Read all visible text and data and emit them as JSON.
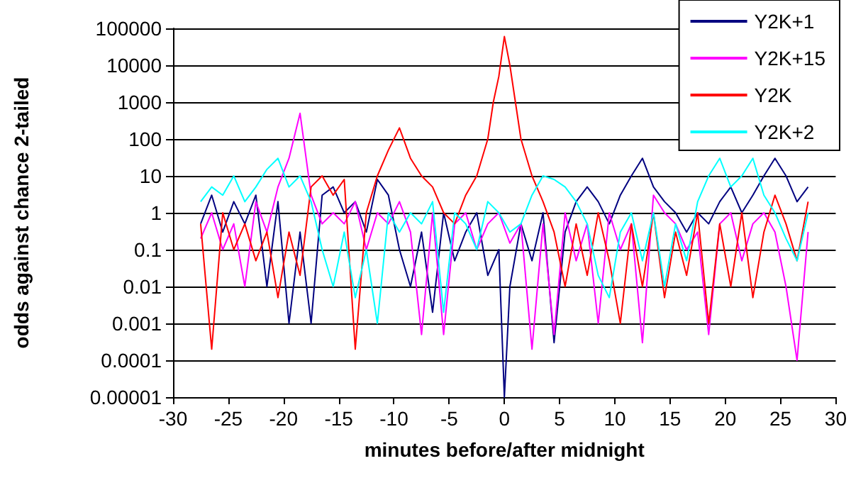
{
  "chart_data": {
    "type": "line",
    "xlabel": "minutes before/after midnight",
    "ylabel": "odds against chance 2-tailed",
    "xlim": [
      -30,
      30
    ],
    "xticks": [
      -30,
      -25,
      -20,
      -15,
      -10,
      -5,
      0,
      5,
      10,
      15,
      20,
      25,
      30
    ],
    "ylim": [
      1e-05,
      100000
    ],
    "yticks": [
      {
        "value": 1e-05,
        "label": "0.00001"
      },
      0.0001,
      0.001,
      0.01,
      0.1,
      1,
      10,
      100,
      1000,
      10000,
      100000
    ],
    "log": "y",
    "grid": "y",
    "legend": "top right",
    "marker": "none",
    "line_style": "solid",
    "x": [
      -27.5,
      -26.5,
      -25.5,
      -24.5,
      -23.5,
      -22.5,
      -21.5,
      -20.5,
      -19.5,
      -18.5,
      -17.5,
      -16.5,
      -15.5,
      -14.5,
      -13.5,
      -12.5,
      -11.5,
      -10.5,
      -9.5,
      -8.5,
      -7.5,
      -6.5,
      -5.5,
      -4.5,
      -3.5,
      -2.5,
      -1.5,
      -0.5,
      0.5,
      1.5,
      2.5,
      3.5,
      4.5,
      5.5,
      6.5,
      7.5,
      8.5,
      9.5,
      10.5,
      11.5,
      12.5,
      13.5,
      14.5,
      15.5,
      16.5,
      17.5,
      18.5,
      19.5,
      20.5,
      21.5,
      22.5,
      23.5,
      24.5,
      25.5,
      26.5,
      27.5
    ],
    "series": [
      {
        "name": "Y2K+1",
        "color": "#000080",
        "x": [
          -27.5,
          -26.5,
          -25.5,
          -24.5,
          -23.5,
          -22.5,
          -21.5,
          -20.5,
          -19.5,
          -18.5,
          -17.5,
          -16.5,
          -15.5,
          -14.5,
          -13.5,
          -12.5,
          -11.5,
          -10.5,
          -9.5,
          -8.5,
          -7.5,
          -6.5,
          -5.5,
          -4.5,
          -3.5,
          -2.5,
          -1.5,
          -0.5,
          0,
          0.5,
          1.5,
          2.5,
          3.5,
          4.5,
          5.5,
          6.5,
          7.5,
          8.5,
          9.5,
          10.5,
          11.5,
          12.5,
          13.5,
          14.5,
          15.5,
          16.5,
          17.5,
          18.5,
          19.5,
          20.5,
          21.5,
          22.5,
          23.5,
          24.5,
          25.5,
          26.5,
          27.5
        ],
        "values": [
          0.5,
          3,
          0.3,
          2,
          0.5,
          3,
          0.01,
          2,
          0.001,
          0.3,
          0.001,
          3,
          5,
          1,
          2,
          0.3,
          8,
          3,
          0.1,
          0.01,
          0.3,
          0.002,
          1,
          0.05,
          0.3,
          1,
          0.02,
          0.1,
          1e-05,
          0.01,
          0.5,
          0.05,
          1,
          0.0003,
          0.3,
          2,
          5,
          2,
          0.5,
          3,
          10,
          30,
          5,
          2,
          1,
          0.3,
          1,
          0.5,
          2,
          5,
          1,
          3,
          10,
          30,
          10,
          2,
          5
        ]
      },
      {
        "name": "Y2K+15",
        "color": "#ff00ff",
        "values": [
          0.2,
          1,
          0.1,
          0.5,
          0.01,
          2,
          0.3,
          5,
          30,
          500,
          3,
          0.5,
          1,
          0.5,
          2,
          0.1,
          1,
          0.5,
          2,
          0.3,
          0.0005,
          1,
          0.0005,
          0.5,
          1,
          0.1,
          0.5,
          1,
          0.15,
          0.5,
          0.0002,
          0.5,
          0.0005,
          1,
          0.05,
          0.5,
          0.001,
          1,
          0.1,
          0.5,
          0.0003,
          3,
          1,
          0.5,
          0.1,
          0.3,
          0.0005,
          0.5,
          1,
          0.05,
          0.5,
          1,
          0.3,
          0.01,
          0.0001,
          0.3
        ]
      },
      {
        "name": "Y2K",
        "color": "#ff0000",
        "x": [
          -27.5,
          -26.5,
          -25.5,
          -24.5,
          -23.5,
          -22.5,
          -21.5,
          -20.5,
          -19.5,
          -18.5,
          -17.5,
          -16.5,
          -15.5,
          -14.5,
          -13.5,
          -12.5,
          -11.5,
          -10.5,
          -9.5,
          -8.5,
          -7.5,
          -6.5,
          -5.5,
          -4.5,
          -3.5,
          -2.5,
          -1.5,
          -1,
          -0.5,
          0,
          0.5,
          1,
          1.5,
          2.5,
          3.5,
          4.5,
          5.5,
          6.5,
          7.5,
          8.5,
          9.5,
          10.5,
          11.5,
          12.5,
          13.5,
          14.5,
          15.5,
          16.5,
          17.5,
          18.5,
          19.5,
          20.5,
          21.5,
          22.5,
          23.5,
          24.5,
          25.5,
          26.5,
          27.5
        ],
        "values": [
          0.5,
          0.0002,
          1,
          0.1,
          0.5,
          0.05,
          0.3,
          0.005,
          0.3,
          0.02,
          5,
          10,
          3,
          8,
          0.0002,
          1,
          10,
          50,
          200,
          30,
          10,
          5,
          1,
          0.5,
          3,
          10,
          100,
          1000,
          5000,
          60000,
          10000,
          1000,
          100,
          10,
          2,
          0.3,
          0.01,
          0.5,
          0.02,
          1,
          0.05,
          0.001,
          0.5,
          0.01,
          1,
          0.005,
          0.3,
          0.02,
          1,
          0.001,
          0.5,
          0.01,
          1,
          0.005,
          0.3,
          3,
          0.5,
          0.05,
          2
        ]
      },
      {
        "name": "Y2K+2",
        "color": "#00ffff",
        "values": [
          2,
          5,
          3,
          10,
          2,
          5,
          15,
          30,
          5,
          10,
          2,
          0.1,
          0.01,
          0.3,
          0.005,
          0.1,
          0.001,
          1,
          0.3,
          1,
          0.5,
          2,
          0.002,
          1,
          0.5,
          0.1,
          2,
          1,
          0.3,
          0.5,
          3,
          10,
          8,
          5,
          2,
          0.5,
          0.02,
          0.005,
          0.3,
          1,
          0.05,
          1,
          0.01,
          0.5,
          0.05,
          2,
          10,
          30,
          5,
          10,
          30,
          3,
          1,
          0.2,
          0.05,
          1
        ]
      }
    ]
  }
}
